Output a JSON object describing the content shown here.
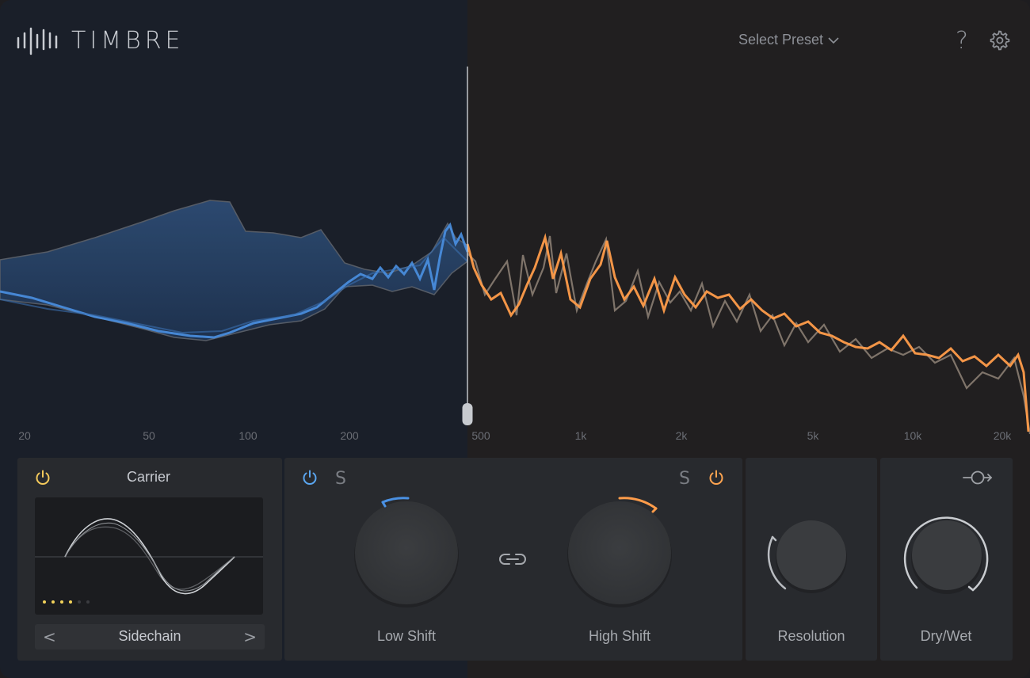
{
  "app": {
    "title": "TIMBRE"
  },
  "header": {
    "preset_label": "Select Preset"
  },
  "icons": {
    "logo": "waveform-bars-icon",
    "preset": "chevron-down-icon",
    "help": "question-mark-icon",
    "settings": "gear-icon",
    "link": "link-icon",
    "drywet": "rotate-arrow-icon"
  },
  "colors": {
    "low_band": "#4a90e2",
    "high_band": "#ff9c4a",
    "carrier_dots": "#f3d35b"
  },
  "analyzer": {
    "freq_ticks": [
      "20",
      "50",
      "100",
      "200",
      "500",
      "1k",
      "2k",
      "5k",
      "10k",
      "20k"
    ],
    "crossover_label": "500"
  },
  "carrier": {
    "title": "Carrier",
    "power": "on",
    "source": "Sidechain",
    "prev_label": "<",
    "next_label": ">",
    "pages_total": 6,
    "page_active": 4
  },
  "shift": {
    "low": {
      "label": "Low Shift",
      "solo": "S",
      "power": "on"
    },
    "high": {
      "label": "High Shift",
      "solo": "S",
      "power": "on"
    }
  },
  "resolution": {
    "label": "Resolution"
  },
  "drywet": {
    "label": "Dry/Wet"
  }
}
